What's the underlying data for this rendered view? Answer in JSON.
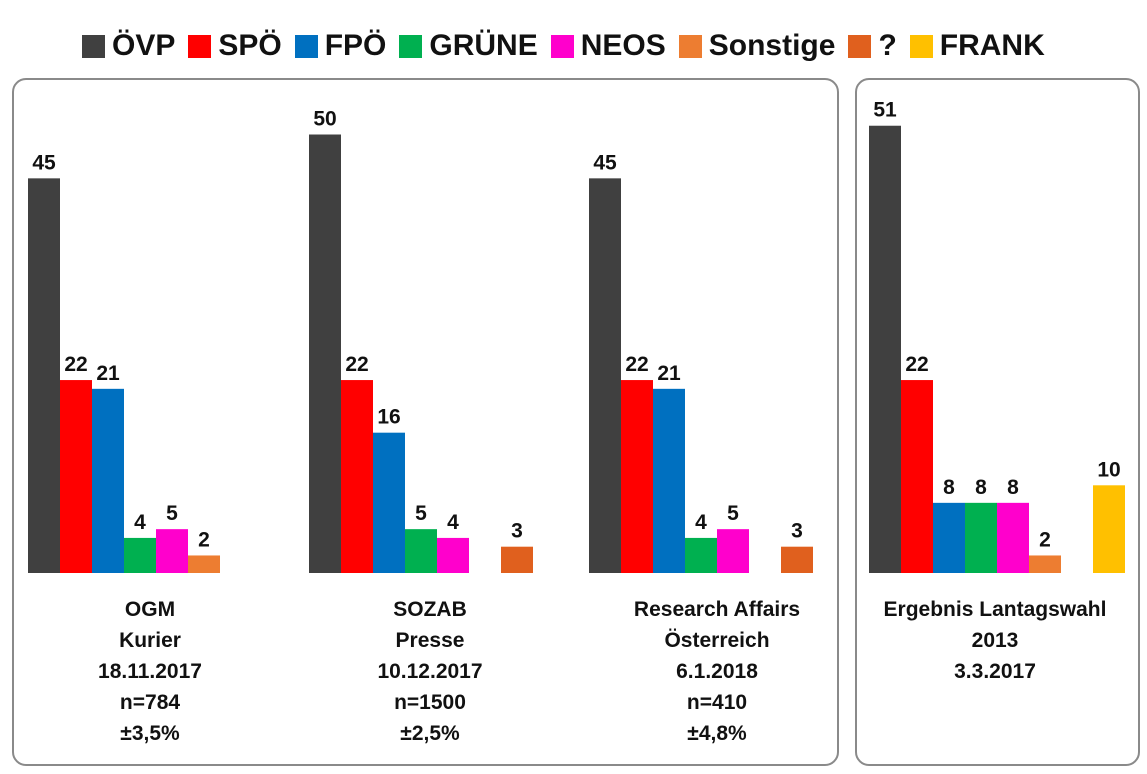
{
  "legend": [
    {
      "label": "ÖVP",
      "color": "#404040"
    },
    {
      "label": "SPÖ",
      "color": "#ff0000"
    },
    {
      "label": "FPÖ",
      "color": "#0070c0"
    },
    {
      "label": "GRÜNE",
      "color": "#00b050"
    },
    {
      "label": "NEOS",
      "color": "#ff00cc"
    },
    {
      "label": "Sonstige",
      "color": "#ed7d31"
    },
    {
      "label": "?",
      "color": "#e0601e"
    },
    {
      "label": "FRANK",
      "color": "#ffc000"
    }
  ],
  "chart_data": {
    "type": "bar",
    "series_names": [
      "ÖVP",
      "SPÖ",
      "FPÖ",
      "GRÜNE",
      "NEOS",
      "Sonstige",
      "?",
      "FRANK"
    ],
    "ylim": [
      0,
      55
    ],
    "groups": [
      {
        "caption": [
          "OGM",
          "Kurier",
          "18.11.2017",
          "n=784",
          "±3,5%"
        ],
        "bars": [
          {
            "series": "ÖVP",
            "value": 45
          },
          {
            "series": "SPÖ",
            "value": 22
          },
          {
            "series": "FPÖ",
            "value": 21
          },
          {
            "series": "GRÜNE",
            "value": 4
          },
          {
            "series": "NEOS",
            "value": 5
          },
          {
            "series": "Sonstige",
            "value": 2
          }
        ]
      },
      {
        "caption": [
          "SOZAB",
          "Presse",
          "10.12.2017",
          "n=1500",
          "±2,5%"
        ],
        "bars": [
          {
            "series": "ÖVP",
            "value": 50
          },
          {
            "series": "SPÖ",
            "value": 22
          },
          {
            "series": "FPÖ",
            "value": 16
          },
          {
            "series": "GRÜNE",
            "value": 5
          },
          {
            "series": "NEOS",
            "value": 4
          },
          {
            "series": "?",
            "value": 3
          }
        ]
      },
      {
        "caption": [
          "Research Affairs",
          "Österreich",
          "6.1.2018",
          "n=410",
          "±4,8%"
        ],
        "bars": [
          {
            "series": "ÖVP",
            "value": 45
          },
          {
            "series": "SPÖ",
            "value": 22
          },
          {
            "series": "FPÖ",
            "value": 21
          },
          {
            "series": "GRÜNE",
            "value": 4
          },
          {
            "series": "NEOS",
            "value": 5
          },
          {
            "series": "?",
            "value": 3
          }
        ]
      },
      {
        "caption": [
          "Ergebnis Lantagswahl",
          "2013",
          "3.3.2017"
        ],
        "bars": [
          {
            "series": "ÖVP",
            "value": 51
          },
          {
            "series": "SPÖ",
            "value": 22
          },
          {
            "series": "FPÖ",
            "value": 8
          },
          {
            "series": "GRÜNE",
            "value": 8
          },
          {
            "series": "NEOS",
            "value": 8
          },
          {
            "series": "Sonstige",
            "value": 2
          },
          {
            "series": "FRANK",
            "value": 10
          }
        ]
      }
    ]
  }
}
